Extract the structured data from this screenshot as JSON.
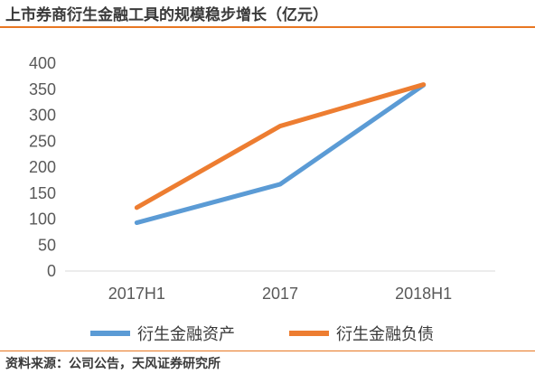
{
  "header": {
    "title": "上市券商衍生金融工具的规模稳步增长（亿元）"
  },
  "footer": {
    "source": "资料来源：公司公告，天风证券研究所"
  },
  "colors": {
    "accent": "#e87722",
    "series_blue": "#5b9bd5",
    "series_orange": "#ed7d31",
    "axis": "#d9d9d9",
    "text": "#595959"
  },
  "chart_data": {
    "type": "line",
    "categories": [
      "2017H1",
      "2017",
      "2018H1"
    ],
    "series": [
      {
        "name": "衍生金融资产",
        "color": "#5b9bd5",
        "values": [
          93,
          167,
          358
        ]
      },
      {
        "name": "衍生金融负债",
        "color": "#ed7d31",
        "values": [
          122,
          279,
          359
        ]
      }
    ],
    "ylim": [
      0,
      400
    ],
    "yticks": [
      0,
      50,
      100,
      150,
      200,
      250,
      300,
      350,
      400
    ],
    "grid": false,
    "legend": "bottom"
  }
}
